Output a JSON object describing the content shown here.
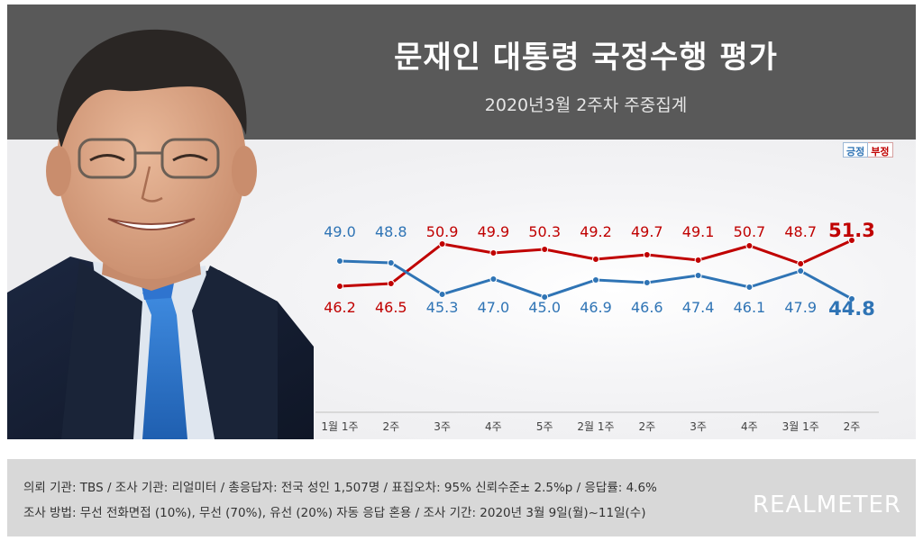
{
  "header": {
    "title": "문재인 대통령 국정수행 평가",
    "subtitle": "2020년3월 2주차 주중집계"
  },
  "legend": {
    "positive": "긍정",
    "negative": "부정"
  },
  "colors": {
    "positive": "#2f74b5",
    "negative": "#c00000",
    "header_bg": "#595959",
    "footer_bg": "#d8d8d8"
  },
  "chart_data": {
    "type": "line",
    "categories": [
      "1월 1주",
      "2주",
      "3주",
      "4주",
      "5주",
      "2월 1주",
      "2주",
      "3주",
      "4주",
      "3월 1주",
      "2주"
    ],
    "series": [
      {
        "name": "긍정",
        "values": [
          49.0,
          48.8,
          45.3,
          47.0,
          45.0,
          46.9,
          46.6,
          47.4,
          46.1,
          47.9,
          44.8
        ],
        "color": "#2f74b5"
      },
      {
        "name": "부정",
        "values": [
          46.2,
          46.5,
          50.9,
          49.9,
          50.3,
          49.2,
          49.7,
          49.1,
          50.7,
          48.7,
          51.3
        ],
        "color": "#c00000"
      }
    ],
    "title": "문재인 대통령 국정수행 평가",
    "subtitle": "2020년3월 2주차 주중집계",
    "xlabel": "",
    "ylabel": "",
    "ylim": [
      41,
      55
    ],
    "grid": false,
    "legend_position": "top-right"
  },
  "footer": {
    "line1": "의뢰 기관: TBS / 조사 기관: 리얼미터 / 총응답자: 전국 성인 1,507명 / 표집오차: 95% 신뢰수준± 2.5%p / 응답률: 4.6%",
    "line2": "조사 방법: 무선 전화면접 (10%), 무선 (70%), 유선 (20%) 자동 응답 혼용 / 조사 기간: 2020년 3월 9일(월)~11일(수)",
    "brand": "REALMETER"
  }
}
